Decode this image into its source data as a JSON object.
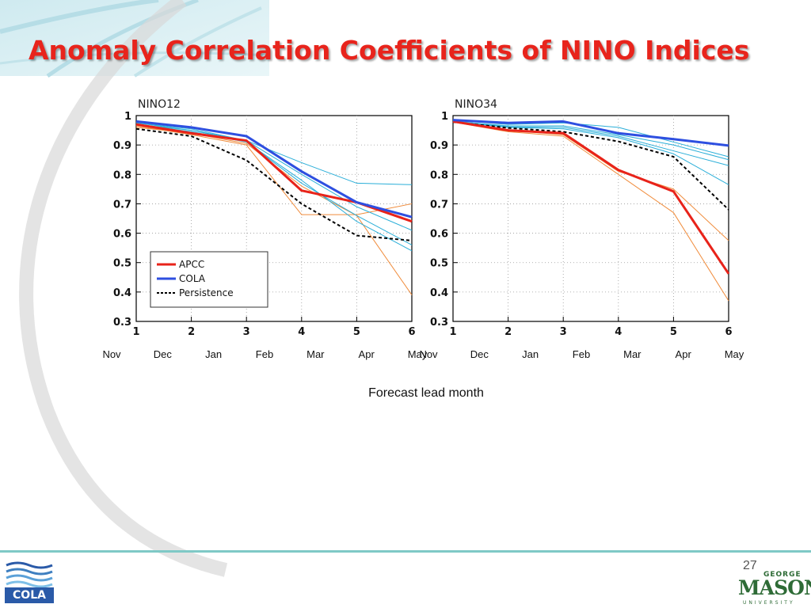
{
  "slide": {
    "title": "Anomaly Correlation Coefficients of NINO Indices",
    "page_number": "27",
    "logos": {
      "left_text": "COLA",
      "right_line1": "GEORGE",
      "right_line2": "MASON",
      "right_line3": "UNIVERSITY"
    }
  },
  "x_axis_title": "Forecast lead month",
  "chart_data": [
    {
      "type": "line",
      "title": "NINO12",
      "x": [
        1,
        2,
        3,
        4,
        5,
        6
      ],
      "x_months": [
        "Nov",
        "Dec",
        "Jan",
        "Feb",
        "Mar",
        "Apr",
        "May"
      ],
      "xlim": [
        1,
        6
      ],
      "ylim": [
        0.3,
        1
      ],
      "yticks": [
        "0.3",
        "0.4",
        "0.5",
        "0.6",
        "0.7",
        "0.8",
        "0.9",
        "1"
      ],
      "grid": true,
      "legend": {
        "placement": "lower-left",
        "entries": [
          {
            "name": "APCC",
            "color": "#e8231a",
            "style": "solid"
          },
          {
            "name": "COLA",
            "color": "#2e4fe0",
            "style": "solid"
          },
          {
            "name": "Persistence",
            "color": "#000000",
            "style": "dashed"
          }
        ]
      },
      "series": [
        {
          "name": "APCC",
          "color": "#e8231a",
          "width": 3,
          "values": [
            0.97,
            0.94,
            0.915,
            0.745,
            0.705,
            0.64
          ]
        },
        {
          "name": "COLA",
          "color": "#2e4fe0",
          "width": 3,
          "values": [
            0.98,
            0.96,
            0.93,
            0.81,
            0.705,
            0.655
          ]
        },
        {
          "name": "Persistence",
          "color": "#000000",
          "width": 2,
          "dashed": true,
          "values": [
            0.955,
            0.93,
            0.848,
            0.7,
            0.592,
            0.575
          ]
        },
        {
          "color": "#f08c3c",
          "width": 1,
          "values": [
            0.965,
            0.935,
            0.9,
            0.663,
            0.663,
            0.7
          ]
        },
        {
          "color": "#f08c3c",
          "width": 1,
          "values": [
            0.96,
            0.94,
            0.905,
            0.76,
            0.66,
            0.39
          ]
        },
        {
          "color": "#2aaed8",
          "width": 1,
          "values": [
            0.975,
            0.95,
            0.915,
            0.84,
            0.77,
            0.765
          ]
        },
        {
          "color": "#2aaed8",
          "width": 1,
          "values": [
            0.975,
            0.955,
            0.915,
            0.8,
            0.69,
            0.61
          ]
        },
        {
          "color": "#2aaed8",
          "width": 1,
          "values": [
            0.97,
            0.95,
            0.91,
            0.77,
            0.66,
            0.56
          ]
        },
        {
          "color": "#2aaed8",
          "width": 1,
          "values": [
            0.97,
            0.945,
            0.91,
            0.78,
            0.64,
            0.54
          ]
        }
      ]
    },
    {
      "type": "line",
      "title": "NINO34",
      "x": [
        1,
        2,
        3,
        4,
        5,
        6
      ],
      "x_months": [
        "Nov",
        "Dec",
        "Jan",
        "Feb",
        "Mar",
        "Apr",
        "May"
      ],
      "xlim": [
        1,
        6
      ],
      "ylim": [
        0.3,
        1
      ],
      "yticks": [
        "0.3",
        "0.4",
        "0.5",
        "0.6",
        "0.7",
        "0.8",
        "0.9",
        "1"
      ],
      "grid": true,
      "series": [
        {
          "name": "APCC",
          "color": "#e8231a",
          "width": 3,
          "values": [
            0.98,
            0.95,
            0.94,
            0.815,
            0.742,
            0.462
          ]
        },
        {
          "name": "COLA",
          "color": "#2e4fe0",
          "width": 3,
          "values": [
            0.985,
            0.975,
            0.98,
            0.94,
            0.92,
            0.898
          ]
        },
        {
          "name": "Persistence",
          "color": "#000000",
          "width": 2,
          "dashed": true,
          "values": [
            0.978,
            0.958,
            0.945,
            0.912,
            0.86,
            0.68
          ]
        },
        {
          "color": "#f08c3c",
          "width": 1,
          "values": [
            0.978,
            0.945,
            0.93,
            0.8,
            0.67,
            0.37
          ]
        },
        {
          "color": "#f08c3c",
          "width": 1,
          "values": [
            0.978,
            0.95,
            0.935,
            0.81,
            0.75,
            0.575
          ]
        },
        {
          "color": "#2aaed8",
          "width": 1,
          "values": [
            0.985,
            0.97,
            0.975,
            0.96,
            0.91,
            0.86
          ]
        },
        {
          "color": "#2aaed8",
          "width": 1,
          "values": [
            0.98,
            0.965,
            0.965,
            0.935,
            0.9,
            0.85
          ]
        },
        {
          "color": "#2aaed8",
          "width": 1,
          "values": [
            0.982,
            0.962,
            0.96,
            0.93,
            0.88,
            0.83
          ]
        },
        {
          "color": "#2aaed8",
          "width": 1,
          "values": [
            0.98,
            0.96,
            0.955,
            0.925,
            0.87,
            0.765
          ]
        }
      ]
    }
  ]
}
